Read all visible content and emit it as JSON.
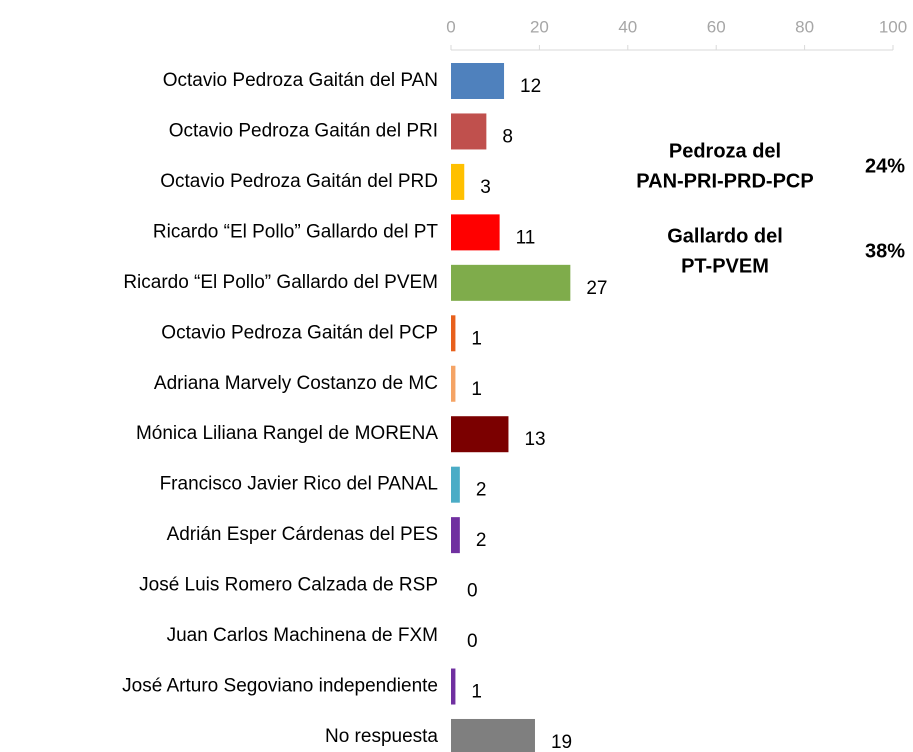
{
  "chart_data": {
    "type": "hbar",
    "categories": [
      "Octavio Pedroza Gaitán del PAN",
      "Octavio Pedroza Gaitán del PRI",
      "Octavio Pedroza Gaitán del PRD",
      "Ricardo “El Pollo” Gallardo del PT",
      "Ricardo “El Pollo” Gallardo del PVEM",
      "Octavio Pedroza Gaitán del PCP",
      "Adriana Marvely Costanzo de MC",
      "Mónica Liliana Rangel de MORENA",
      "Francisco Javier Rico del PANAL",
      "Adrián Esper Cárdenas del PES",
      "José Luis Romero Calzada de RSP",
      "Juan Carlos Machinena de FXM",
      "José Arturo Segoviano independiente",
      "No respuesta"
    ],
    "values": [
      12,
      8,
      3,
      11,
      27,
      1,
      1,
      13,
      2,
      2,
      0,
      0,
      1,
      19
    ],
    "colors": [
      "#4f81bd",
      "#c0504d",
      "#ffc000",
      "#ff0000",
      "#7fac4b",
      "#e8601c",
      "#f5a465",
      "#7b0000",
      "#4bacc6",
      "#7030a0",
      "#7030a0",
      "#7030a0",
      "#7030a0",
      "#7f7f7f"
    ],
    "xlim": [
      0,
      100
    ],
    "xticks": [
      0,
      20,
      40,
      60,
      80,
      100
    ],
    "annotations": [
      {
        "lines": [
          "Pedroza del",
          "PAN-PRI-PRD-PCP"
        ],
        "value": "24%"
      },
      {
        "lines": [
          "Gallardo del",
          "PT-PVEM"
        ],
        "value": "38%"
      }
    ]
  }
}
